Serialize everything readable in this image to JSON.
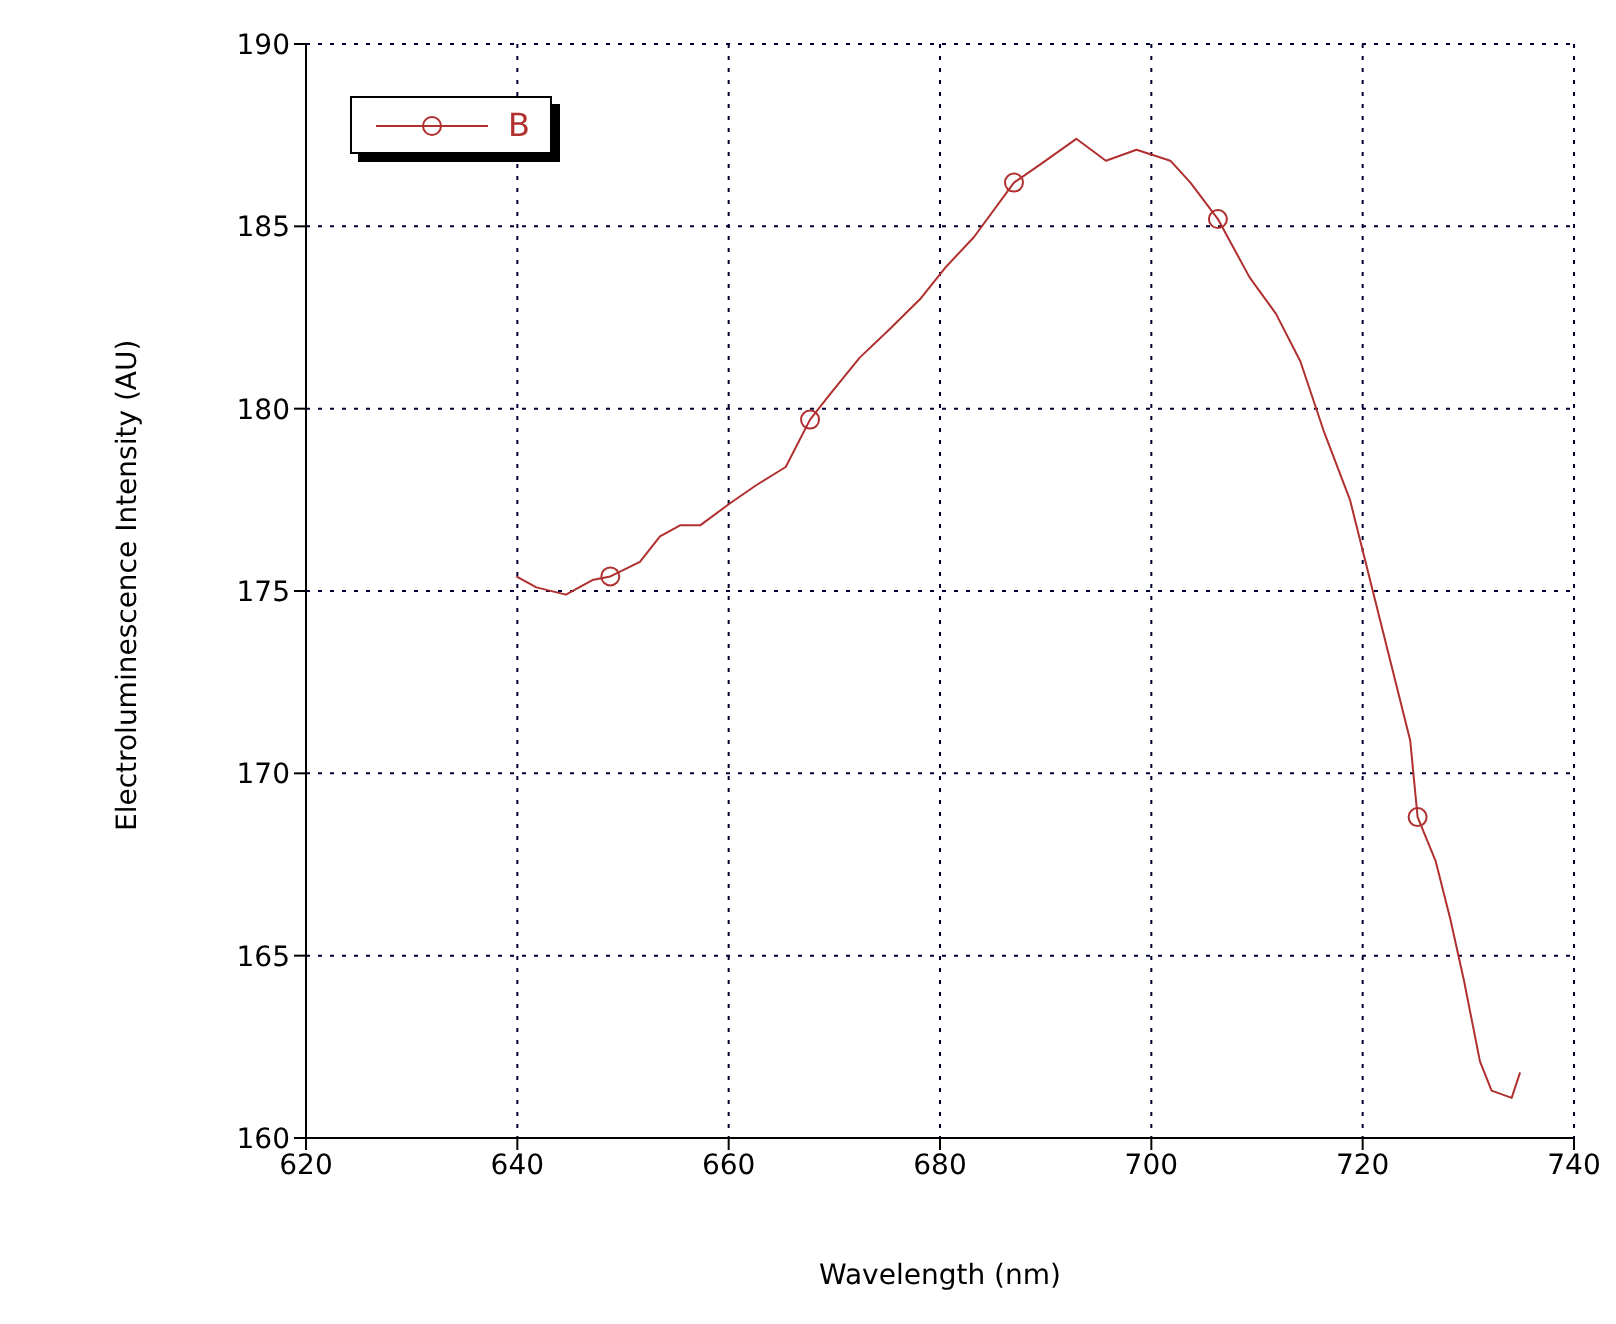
{
  "chart_data": {
    "type": "line",
    "xlabel": "Wavelength (nm)",
    "ylabel": "Electroluminescence Intensity (AU)",
    "xlim": [
      620,
      740
    ],
    "xticks": [
      620,
      640,
      660,
      680,
      700,
      720,
      740
    ],
    "ylim": [
      160,
      190
    ],
    "yticks": [
      160,
      165,
      170,
      175,
      180,
      185,
      190
    ],
    "grid": true,
    "legend": "top left",
    "series": [
      {
        "name": "B",
        "color": "#b03030",
        "line_style": "solid",
        "x": [
          639.9,
          641.8,
          644.6,
          647.1,
          648.8,
          651.6,
          653.5,
          655.4,
          657.3,
          660.1,
          662.6,
          665.4,
          667.7,
          669.6,
          672.4,
          675.3,
          678.1,
          680.6,
          683.2,
          687.0,
          689.5,
          692.9,
          695.7,
          698.6,
          701.8,
          703.7,
          706.3,
          709.3,
          711.8,
          714.1,
          716.3,
          718.8,
          720.7,
          722.6,
          724.5,
          725.2,
          726.9,
          728.3,
          729.6,
          731.1,
          732.2,
          734.1,
          734.9
        ],
        "values": [
          175.4,
          175.1,
          174.9,
          175.3,
          175.4,
          175.8,
          176.5,
          176.8,
          176.8,
          177.4,
          177.9,
          178.4,
          179.7,
          180.4,
          181.4,
          182.2,
          183.0,
          183.9,
          184.7,
          186.2,
          186.7,
          187.4,
          186.8,
          187.1,
          186.8,
          186.2,
          185.2,
          183.6,
          182.6,
          181.3,
          179.4,
          177.5,
          175.3,
          173.1,
          170.9,
          168.8,
          167.6,
          166.0,
          164.3,
          162.1,
          161.3,
          161.1,
          161.8
        ]
      },
      {
        "type": "scatter",
        "color": "#b03030",
        "marker": "circle",
        "x": [
          648.8,
          667.7,
          687.0,
          706.3,
          725.2
        ],
        "values": [
          175.4,
          179.7,
          186.2,
          185.2,
          168.8
        ]
      }
    ]
  }
}
